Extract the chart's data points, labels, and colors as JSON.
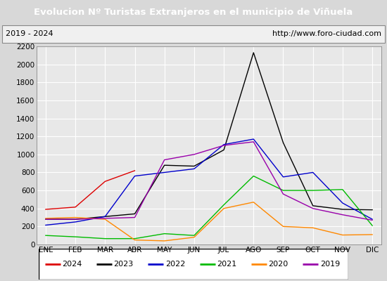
{
  "title": "Evolucion Nº Turistas Extranjeros en el municipio de Viñuela",
  "subtitle_left": "2019 - 2024",
  "subtitle_right": "http://www.foro-ciudad.com",
  "title_bg_color": "#4472c4",
  "title_text_color": "#ffffff",
  "months": [
    "ENE",
    "FEB",
    "MAR",
    "ABR",
    "MAY",
    "JUN",
    "JUL",
    "AGO",
    "SEP",
    "OCT",
    "NOV",
    "DIC"
  ],
  "ylim": [
    0,
    2200
  ],
  "yticks": [
    0,
    200,
    400,
    600,
    800,
    1000,
    1200,
    1400,
    1600,
    1800,
    2000,
    2200
  ],
  "series": {
    "2024": {
      "color": "#dd0000",
      "values": [
        390,
        415,
        700,
        820,
        null,
        null,
        null,
        null,
        null,
        null,
        null,
        null
      ]
    },
    "2023": {
      "color": "#000000",
      "values": [
        280,
        280,
        310,
        340,
        880,
        870,
        1050,
        2130,
        1130,
        430,
        390,
        385
      ]
    },
    "2022": {
      "color": "#0000cc",
      "values": [
        215,
        250,
        310,
        760,
        800,
        840,
        1110,
        1170,
        750,
        800,
        460,
        280
      ]
    },
    "2021": {
      "color": "#00bb00",
      "values": [
        100,
        85,
        65,
        65,
        120,
        100,
        440,
        760,
        600,
        600,
        610,
        210
      ]
    },
    "2020": {
      "color": "#ff8800",
      "values": [
        290,
        300,
        280,
        50,
        40,
        80,
        400,
        470,
        200,
        185,
        105,
        110
      ]
    },
    "2019": {
      "color": "#9900aa",
      "values": [
        280,
        280,
        290,
        300,
        940,
        1000,
        1100,
        1140,
        560,
        400,
        330,
        270
      ]
    }
  },
  "legend_order": [
    "2024",
    "2023",
    "2022",
    "2021",
    "2020",
    "2019"
  ],
  "bg_color": "#d8d8d8",
  "plot_bg_color": "#e8e8e8",
  "grid_color": "#ffffff",
  "border_color": "#555555"
}
